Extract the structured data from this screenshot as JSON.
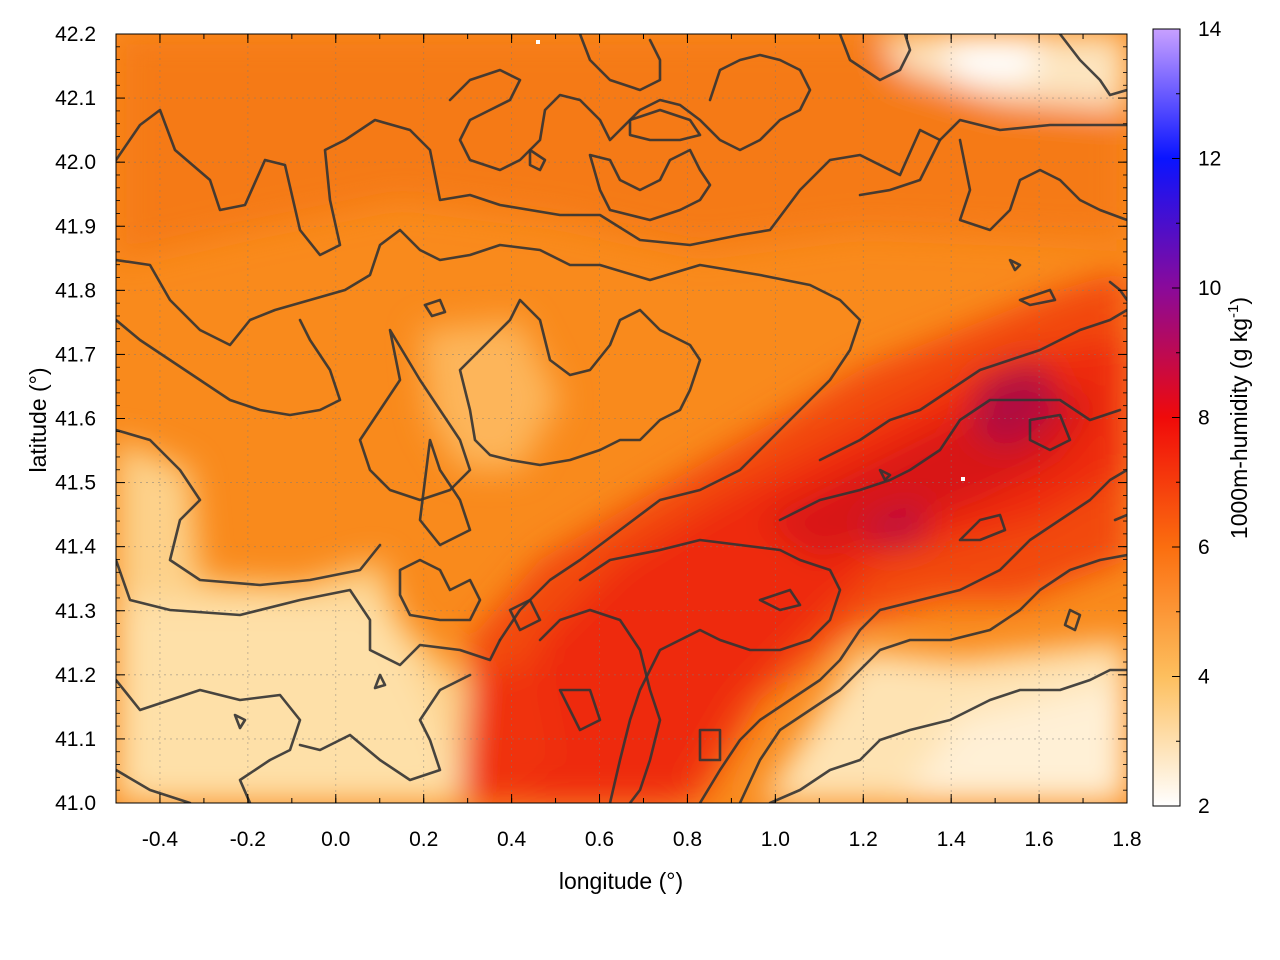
{
  "chart_data": {
    "type": "heatmap",
    "xlabel": "longitude (°)",
    "ylabel": "latitude (°)",
    "colorbar_label": "1000m-humidity (g kg",
    "colorbar_label_sup": "-1",
    "colorbar_label_end": ")",
    "xlim": [
      -0.5,
      1.8
    ],
    "ylim": [
      41.0,
      42.2
    ],
    "clim": [
      2,
      14
    ],
    "x_ticks": [
      "-0.4",
      "-0.2",
      "0.0",
      "0.2",
      "0.4",
      "0.6",
      "0.8",
      "1.0",
      "1.2",
      "1.4",
      "1.6",
      "1.8"
    ],
    "x_tick_values": [
      -0.4,
      -0.2,
      0.0,
      0.2,
      0.4,
      0.6,
      0.8,
      1.0,
      1.2,
      1.4,
      1.6,
      1.8
    ],
    "y_ticks": [
      "41.0",
      "41.1",
      "41.2",
      "41.3",
      "41.4",
      "41.5",
      "41.6",
      "41.7",
      "41.8",
      "41.9",
      "42.0",
      "42.1",
      "42.2"
    ],
    "y_tick_values": [
      41.0,
      41.1,
      41.2,
      41.3,
      41.4,
      41.5,
      41.6,
      41.7,
      41.8,
      41.9,
      42.0,
      42.1,
      42.2
    ],
    "c_ticks": [
      "2",
      "4",
      "6",
      "8",
      "10",
      "12",
      "14"
    ],
    "c_tick_values": [
      2,
      4,
      6,
      8,
      10,
      12,
      14
    ],
    "colormap": [
      {
        "v": 2,
        "color": "#ffffff"
      },
      {
        "v": 4,
        "color": "#fdbf5e"
      },
      {
        "v": 6,
        "color": "#fb6e0f"
      },
      {
        "v": 8,
        "color": "#f00a0a"
      },
      {
        "v": 10,
        "color": "#8a0a9a"
      },
      {
        "v": 12,
        "color": "#0a14ff"
      },
      {
        "v": 14,
        "color": "#c8a0ff"
      }
    ],
    "grid": true,
    "contours": true
  }
}
